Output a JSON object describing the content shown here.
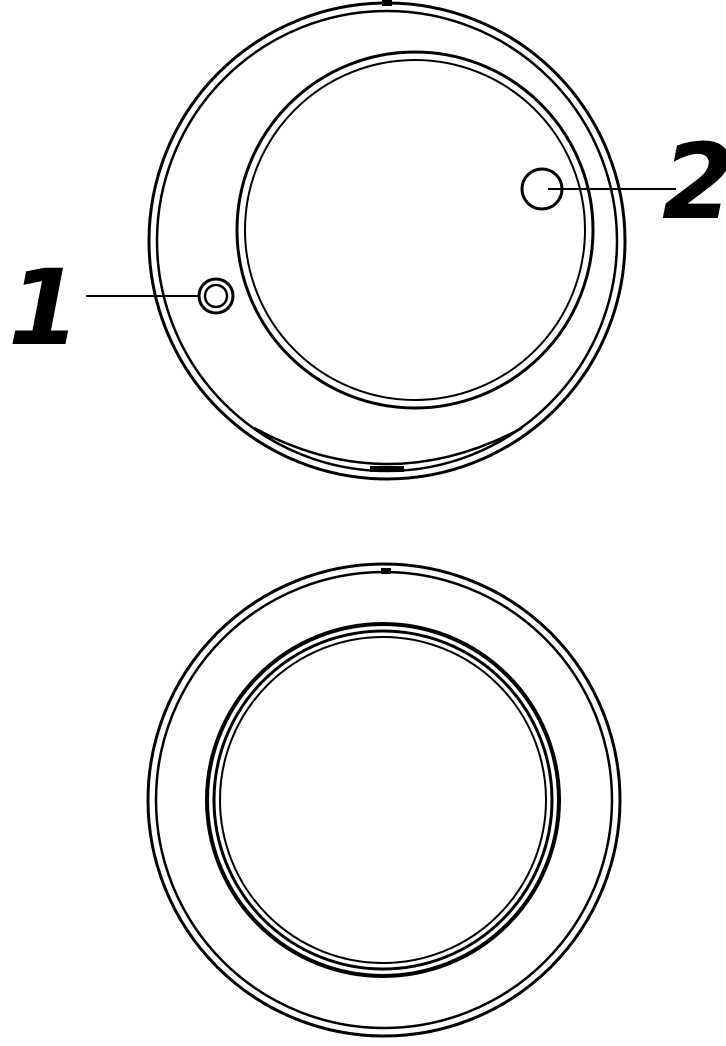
{
  "callouts": [
    {
      "id": "callout-1",
      "label": "1"
    },
    {
      "id": "callout-2",
      "label": "2"
    }
  ],
  "colors": {
    "line": "#000000",
    "background": "#ffffff"
  }
}
